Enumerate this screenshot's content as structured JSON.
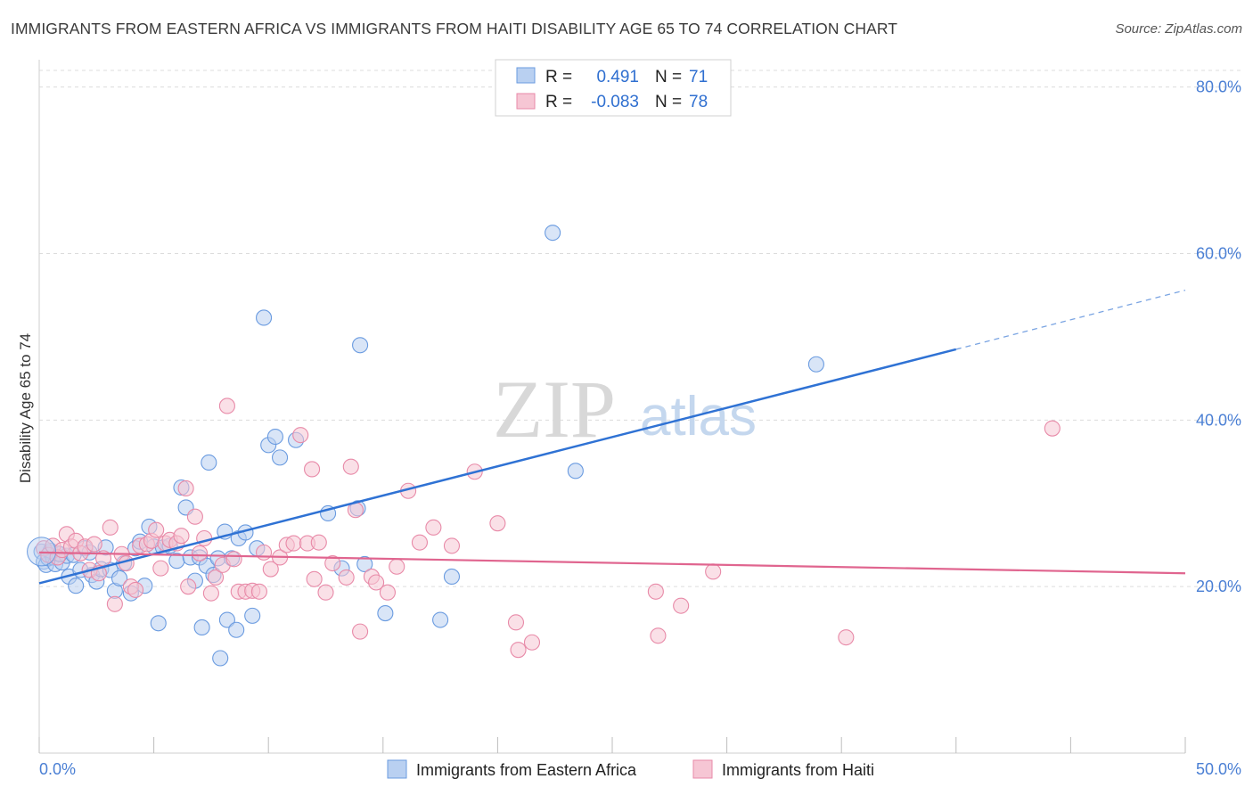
{
  "header": {
    "title": "IMMIGRANTS FROM EASTERN AFRICA VS IMMIGRANTS FROM HAITI DISABILITY AGE 65 TO 74 CORRELATION CHART",
    "source": "Source: ZipAtlas.com"
  },
  "watermark": {
    "zip": "ZIP",
    "atlas": "atlas"
  },
  "legend": {
    "r_label": "R =",
    "n_label": "N =",
    "rows": [
      {
        "r": "0.491",
        "n": "71",
        "color": "#6a9be0",
        "fill": "#b9d0f1"
      },
      {
        "r": "-0.083",
        "n": "78",
        "color": "#e88aa8",
        "fill": "#f6c6d4"
      }
    ]
  },
  "chart_data": {
    "type": "scatter",
    "title": "IMMIGRANTS FROM EASTERN AFRICA VS IMMIGRANTS FROM HAITI DISABILITY AGE 65 TO 74 CORRELATION CHART",
    "xlabel": "",
    "ylabel": "Disability Age 65 to 74",
    "xlim": [
      0,
      50
    ],
    "ylim": [
      0,
      82
    ],
    "x_tick_labels": [
      "0.0%",
      "50.0%"
    ],
    "y_ticks": [
      20,
      40,
      60,
      80
    ],
    "y_tick_labels": [
      "20.0%",
      "40.0%",
      "60.0%",
      "80.0%"
    ],
    "grid": true,
    "legend_position": "top-center",
    "series": [
      {
        "name": "Immigrants from Eastern Africa",
        "color": "#6a9be0",
        "fill": "#b9d0f1",
        "trend": {
          "x": [
            0,
            40,
            50
          ],
          "y": [
            20.4,
            48.5,
            55.6
          ],
          "solid_until": 40
        },
        "points": [
          [
            0.1,
            24.2
          ],
          [
            0.2,
            23.0
          ],
          [
            0.3,
            22.6
          ],
          [
            0.4,
            23.4
          ],
          [
            0.5,
            24.1
          ],
          [
            0.6,
            23.5
          ],
          [
            0.7,
            22.7
          ],
          [
            0.8,
            24.0
          ],
          [
            1.0,
            22.9
          ],
          [
            1.2,
            23.7
          ],
          [
            1.3,
            21.2
          ],
          [
            1.5,
            23.8
          ],
          [
            1.6,
            20.1
          ],
          [
            1.8,
            22.0
          ],
          [
            2.0,
            24.6
          ],
          [
            2.2,
            24.1
          ],
          [
            2.3,
            21.4
          ],
          [
            2.5,
            20.6
          ],
          [
            2.7,
            22.1
          ],
          [
            2.9,
            24.7
          ],
          [
            3.1,
            22.0
          ],
          [
            3.3,
            19.5
          ],
          [
            3.5,
            21.0
          ],
          [
            3.7,
            22.8
          ],
          [
            4.0,
            19.2
          ],
          [
            4.2,
            24.6
          ],
          [
            4.4,
            25.4
          ],
          [
            4.6,
            20.1
          ],
          [
            4.8,
            27.2
          ],
          [
            5.0,
            24.8
          ],
          [
            5.2,
            15.6
          ],
          [
            5.4,
            24.7
          ],
          [
            5.7,
            24.9
          ],
          [
            6.0,
            23.1
          ],
          [
            6.2,
            31.9
          ],
          [
            6.4,
            29.5
          ],
          [
            6.6,
            23.5
          ],
          [
            6.8,
            20.7
          ],
          [
            7.0,
            23.5
          ],
          [
            7.1,
            15.1
          ],
          [
            7.3,
            22.5
          ],
          [
            7.4,
            34.9
          ],
          [
            7.6,
            21.4
          ],
          [
            7.8,
            23.4
          ],
          [
            7.9,
            11.4
          ],
          [
            8.1,
            26.6
          ],
          [
            8.2,
            16.0
          ],
          [
            8.4,
            23.4
          ],
          [
            8.6,
            14.8
          ],
          [
            8.7,
            25.8
          ],
          [
            9.0,
            26.5
          ],
          [
            9.3,
            16.5
          ],
          [
            9.5,
            24.6
          ],
          [
            9.8,
            52.3
          ],
          [
            10.0,
            37.0
          ],
          [
            10.3,
            38.0
          ],
          [
            10.5,
            35.5
          ],
          [
            11.2,
            37.6
          ],
          [
            12.6,
            28.8
          ],
          [
            13.2,
            22.2
          ],
          [
            13.9,
            29.4
          ],
          [
            14.0,
            49.0
          ],
          [
            14.2,
            22.7
          ],
          [
            15.1,
            16.8
          ],
          [
            17.5,
            16.0
          ],
          [
            18.0,
            21.2
          ],
          [
            22.4,
            62.5
          ],
          [
            23.4,
            33.9
          ],
          [
            33.9,
            46.7
          ],
          [
            0.5,
            24.3
          ],
          [
            0.9,
            23.9
          ]
        ]
      },
      {
        "name": "Immigrants from Haiti",
        "color": "#e88aa8",
        "fill": "#f6c6d4",
        "trend": {
          "x": [
            0,
            50
          ],
          "y": [
            24.1,
            21.6
          ]
        },
        "points": [
          [
            0.2,
            24.6
          ],
          [
            0.4,
            23.8
          ],
          [
            0.6,
            24.9
          ],
          [
            0.8,
            23.5
          ],
          [
            1.0,
            24.4
          ],
          [
            1.2,
            26.3
          ],
          [
            1.4,
            24.8
          ],
          [
            1.6,
            25.5
          ],
          [
            1.8,
            24.0
          ],
          [
            2.0,
            24.8
          ],
          [
            2.2,
            22.0
          ],
          [
            2.4,
            25.1
          ],
          [
            2.6,
            21.6
          ],
          [
            2.8,
            23.4
          ],
          [
            3.1,
            27.1
          ],
          [
            3.3,
            17.9
          ],
          [
            3.6,
            23.9
          ],
          [
            3.8,
            22.8
          ],
          [
            4.0,
            20.0
          ],
          [
            4.2,
            19.6
          ],
          [
            4.4,
            24.9
          ],
          [
            4.7,
            25.1
          ],
          [
            4.9,
            25.5
          ],
          [
            5.1,
            26.8
          ],
          [
            5.3,
            22.2
          ],
          [
            5.5,
            25.2
          ],
          [
            5.7,
            25.6
          ],
          [
            6.0,
            25.2
          ],
          [
            6.2,
            26.1
          ],
          [
            6.4,
            31.8
          ],
          [
            6.5,
            20.0
          ],
          [
            6.8,
            28.4
          ],
          [
            7.0,
            24.0
          ],
          [
            7.2,
            25.8
          ],
          [
            7.5,
            19.2
          ],
          [
            7.7,
            21.1
          ],
          [
            8.0,
            22.6
          ],
          [
            8.2,
            41.7
          ],
          [
            8.5,
            23.3
          ],
          [
            8.7,
            19.4
          ],
          [
            9.0,
            19.4
          ],
          [
            9.3,
            19.5
          ],
          [
            9.6,
            19.4
          ],
          [
            9.8,
            24.1
          ],
          [
            10.1,
            22.1
          ],
          [
            10.5,
            23.5
          ],
          [
            10.8,
            25.0
          ],
          [
            11.1,
            25.2
          ],
          [
            11.4,
            38.2
          ],
          [
            11.7,
            25.2
          ],
          [
            11.9,
            34.1
          ],
          [
            12.0,
            20.9
          ],
          [
            12.2,
            25.3
          ],
          [
            12.5,
            19.3
          ],
          [
            12.8,
            22.8
          ],
          [
            13.4,
            21.1
          ],
          [
            13.6,
            34.4
          ],
          [
            13.8,
            29.2
          ],
          [
            14.0,
            14.6
          ],
          [
            14.5,
            21.2
          ],
          [
            14.7,
            20.5
          ],
          [
            15.2,
            19.3
          ],
          [
            15.6,
            22.4
          ],
          [
            16.1,
            31.5
          ],
          [
            16.6,
            25.3
          ],
          [
            17.2,
            27.1
          ],
          [
            18.0,
            24.9
          ],
          [
            19.0,
            33.8
          ],
          [
            20.0,
            27.6
          ],
          [
            20.8,
            15.7
          ],
          [
            20.9,
            12.4
          ],
          [
            21.5,
            13.3
          ],
          [
            26.9,
            19.4
          ],
          [
            27.0,
            14.1
          ],
          [
            28.0,
            17.7
          ],
          [
            29.4,
            21.8
          ],
          [
            35.2,
            13.9
          ],
          [
            44.2,
            39.0
          ]
        ]
      }
    ]
  }
}
